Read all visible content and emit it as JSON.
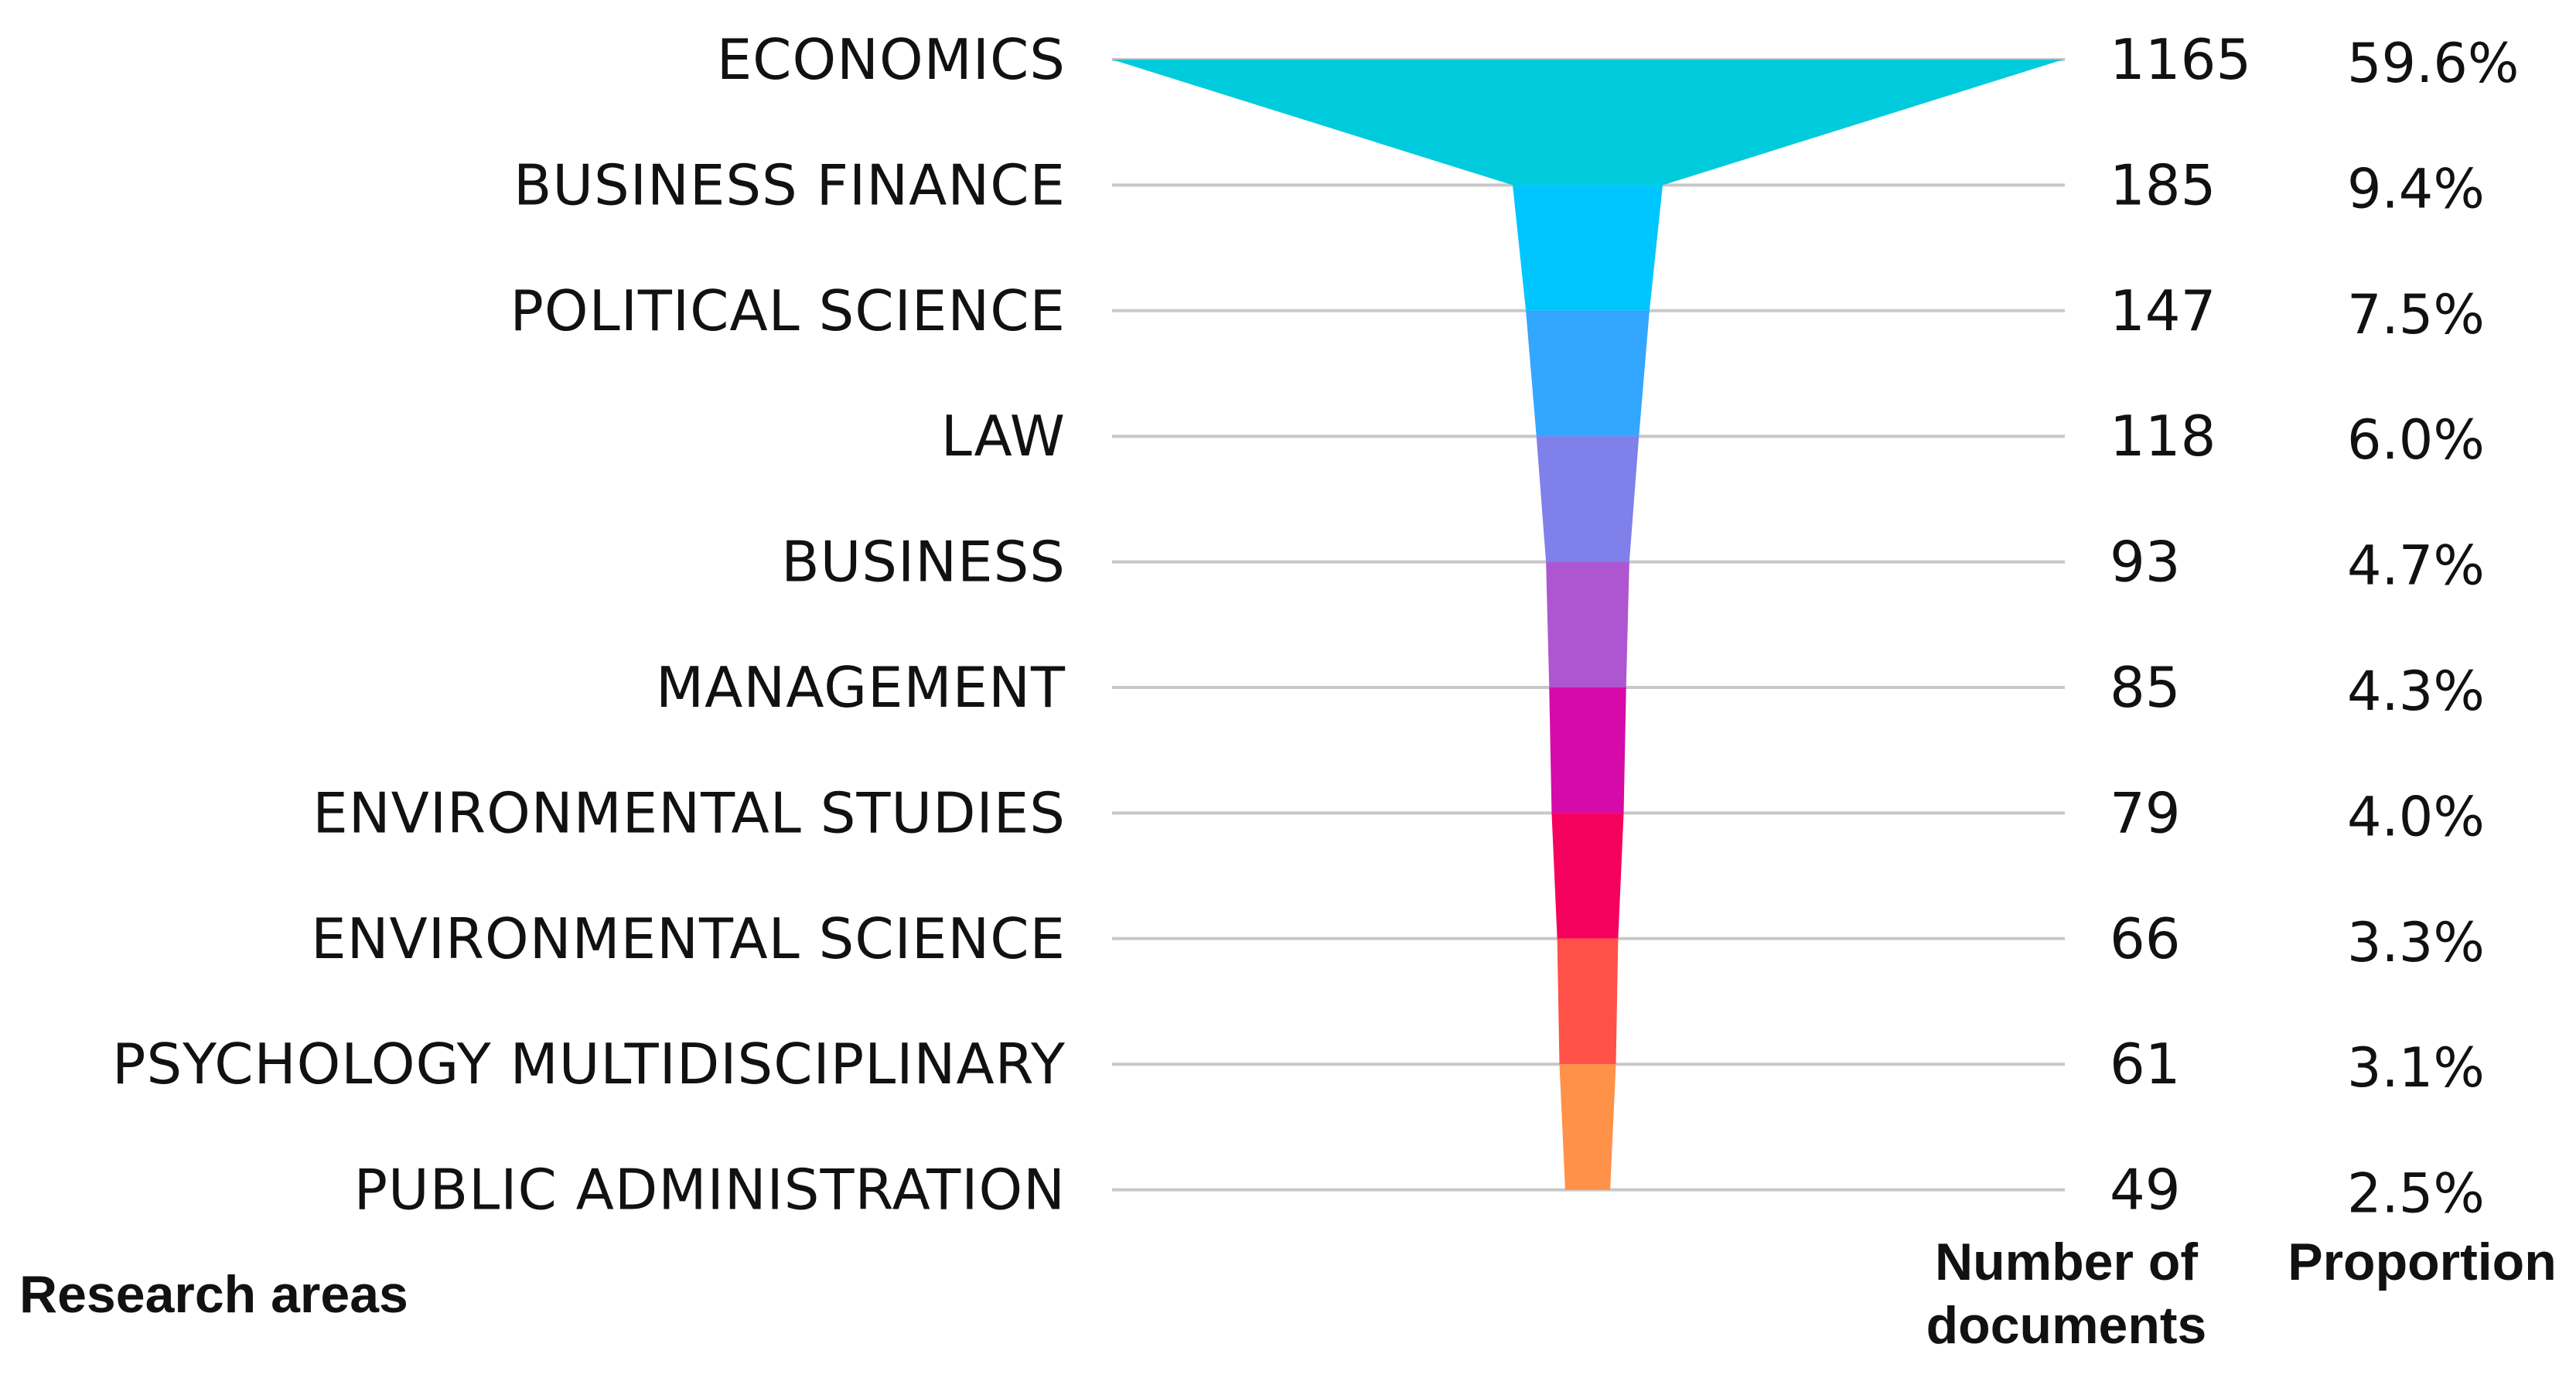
{
  "chart_data": {
    "type": "funnel",
    "categories": [
      "ECONOMICS",
      "BUSINESS FINANCE",
      "POLITICAL SCIENCE",
      "LAW",
      "BUSINESS",
      "MANAGEMENT",
      "ENVIRONMENTAL STUDIES",
      "ENVIRONMENTAL SCIENCE",
      "PSYCHOLOGY MULTIDISCIPLINARY",
      "PUBLIC ADMINISTRATION"
    ],
    "values": [
      1165,
      185,
      147,
      118,
      93,
      85,
      79,
      66,
      61,
      49
    ],
    "proportions": [
      "59.6%",
      "9.4%",
      "7.5%",
      "6.0%",
      "4.7%",
      "4.3%",
      "4.0%",
      "3.3%",
      "3.1%",
      "2.5%"
    ],
    "colors": [
      "#00cbdc",
      "#00c6ff",
      "#33a6ff",
      "#8080ea",
      "#ae56d2",
      "#d60aa8",
      "#f5015e",
      "#f50355",
      "#ff5147",
      "#ff9149"
    ],
    "gridlines": true,
    "headers": {
      "categories": "Research areas",
      "values_line1": "Number of",
      "values_line2": "documents",
      "proportions": "Proportion"
    }
  }
}
